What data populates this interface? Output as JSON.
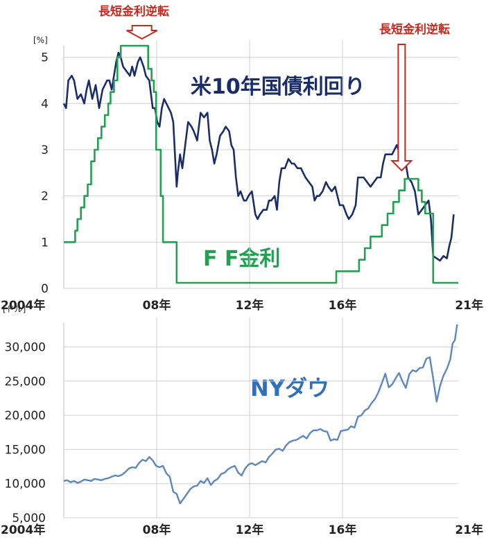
{
  "chart_data": [
    {
      "type": "line",
      "unit_label": "[%]",
      "x_ticks": [
        "2004年",
        "08年",
        "12年",
        "16年",
        "21年"
      ],
      "y_ticks": [
        "0",
        "1",
        "2",
        "3",
        "4",
        "5"
      ],
      "ylim": [
        0,
        5.25
      ],
      "xlim": [
        2004.0,
        2021.3
      ],
      "grid": true,
      "annotations": {
        "left": "長短金利逆転",
        "right": "長短金利逆転",
        "left_x": 2007.0,
        "right_x": 2019.0,
        "colors": {
          "line": "#c8281e",
          "fill": "#ffffff"
        }
      },
      "series": [
        {
          "name": "米10年国債利回り",
          "color": "#1a2d6b",
          "x": [
            2004.0,
            2004.1,
            2004.2,
            2004.35,
            2004.45,
            2004.6,
            2004.75,
            2004.9,
            2005.0,
            2005.1,
            2005.25,
            2005.4,
            2005.55,
            2005.7,
            2005.8,
            2005.9,
            2006.0,
            2006.1,
            2006.2,
            2006.3,
            2006.4,
            2006.5,
            2006.6,
            2006.75,
            2006.9,
            2007.0,
            2007.1,
            2007.25,
            2007.35,
            2007.5,
            2007.6,
            2007.75,
            2007.9,
            2008.0,
            2008.1,
            2008.2,
            2008.3,
            2008.4,
            2008.5,
            2008.6,
            2008.7,
            2008.8,
            2008.95,
            2009.0,
            2009.1,
            2009.2,
            2009.35,
            2009.45,
            2009.6,
            2009.7,
            2009.85,
            2010.0,
            2010.15,
            2010.3,
            2010.4,
            2010.5,
            2010.6,
            2010.7,
            2010.85,
            2011.0,
            2011.1,
            2011.25,
            2011.35,
            2011.45,
            2011.55,
            2011.65,
            2011.75,
            2011.9,
            2012.0,
            2012.1,
            2012.25,
            2012.4,
            2012.5,
            2012.6,
            2012.75,
            2012.9,
            2013.0,
            2013.1,
            2013.25,
            2013.35,
            2013.45,
            2013.55,
            2013.7,
            2013.85,
            2014.0,
            2014.1,
            2014.25,
            2014.4,
            2014.5,
            2014.6,
            2014.75,
            2014.9,
            2015.0,
            2015.1,
            2015.2,
            2015.35,
            2015.5,
            2015.6,
            2015.75,
            2015.9,
            2016.0,
            2016.1,
            2016.25,
            2016.4,
            2016.5,
            2016.65,
            2016.8,
            2016.9,
            2017.0,
            2017.15,
            2017.3,
            2017.45,
            2017.6,
            2017.75,
            2017.9,
            2018.0,
            2018.1,
            2018.25,
            2018.4,
            2018.5,
            2018.6,
            2018.75,
            2018.9,
            2019.0,
            2019.1,
            2019.25,
            2019.4,
            2019.55,
            2019.7,
            2019.85,
            2020.0,
            2020.1,
            2020.2,
            2020.35,
            2020.5,
            2020.65,
            2020.8,
            2020.9,
            2021.0,
            2021.1
          ],
          "y": [
            4.0,
            3.9,
            4.5,
            4.6,
            4.5,
            4.1,
            4.2,
            4.0,
            4.3,
            4.5,
            4.1,
            4.4,
            3.9,
            4.3,
            4.4,
            4.5,
            4.5,
            4.3,
            4.6,
            4.9,
            5.1,
            5.0,
            4.8,
            4.7,
            4.6,
            4.8,
            4.6,
            4.9,
            5.0,
            4.8,
            4.6,
            4.5,
            3.9,
            3.9,
            3.6,
            3.5,
            3.9,
            4.1,
            4.0,
            3.9,
            3.8,
            3.6,
            2.2,
            2.5,
            2.9,
            2.6,
            3.2,
            3.6,
            3.5,
            3.4,
            3.2,
            3.8,
            3.7,
            3.8,
            3.2,
            3.0,
            2.7,
            2.9,
            3.3,
            3.4,
            3.5,
            3.4,
            3.1,
            3.0,
            2.4,
            2.0,
            2.1,
            1.9,
            1.9,
            2.0,
            2.1,
            1.6,
            1.5,
            1.6,
            1.7,
            1.7,
            1.9,
            1.9,
            2.0,
            1.7,
            2.3,
            2.6,
            2.6,
            2.8,
            2.7,
            2.7,
            2.6,
            2.6,
            2.5,
            2.4,
            2.3,
            2.2,
            1.9,
            2.0,
            2.0,
            2.1,
            2.3,
            2.2,
            2.1,
            2.2,
            2.0,
            1.8,
            1.8,
            1.6,
            1.5,
            1.6,
            1.8,
            2.4,
            2.4,
            2.4,
            2.3,
            2.2,
            2.3,
            2.4,
            2.4,
            2.7,
            2.9,
            2.9,
            2.9,
            3.0,
            3.1,
            2.9,
            2.6,
            2.7,
            2.4,
            2.3,
            2.1,
            1.6,
            1.7,
            1.8,
            1.9,
            1.5,
            0.7,
            0.65,
            0.6,
            0.7,
            0.65,
            0.9,
            1.1,
            1.6
          ],
          "label_color": "#1a2d6b"
        },
        {
          "name": "F F金利",
          "color": "#22a051",
          "x": [
            2004.0,
            2004.5,
            2004.5,
            2004.6,
            2004.6,
            2004.75,
            2004.75,
            2004.9,
            2004.9,
            2005.05,
            2005.05,
            2005.2,
            2005.2,
            2005.35,
            2005.35,
            2005.5,
            2005.5,
            2005.65,
            2005.65,
            2005.8,
            2005.8,
            2005.95,
            2005.95,
            2006.05,
            2006.05,
            2006.2,
            2006.2,
            2006.35,
            2006.35,
            2006.5,
            2006.5,
            2007.7,
            2007.7,
            2007.85,
            2007.85,
            2007.95,
            2007.95,
            2008.05,
            2008.05,
            2008.25,
            2008.25,
            2008.35,
            2008.35,
            2008.95,
            2008.95,
            2015.95,
            2015.95,
            2016.95,
            2016.95,
            2017.2,
            2017.2,
            2017.45,
            2017.45,
            2017.95,
            2017.95,
            2018.2,
            2018.2,
            2018.45,
            2018.45,
            2018.7,
            2018.7,
            2018.95,
            2018.95,
            2019.55,
            2019.55,
            2019.7,
            2019.7,
            2019.85,
            2019.85,
            2020.2,
            2020.2,
            2021.3
          ],
          "y": [
            1.0,
            1.0,
            1.25,
            1.25,
            1.5,
            1.5,
            1.75,
            1.75,
            2.0,
            2.0,
            2.25,
            2.25,
            2.75,
            2.75,
            3.0,
            3.0,
            3.25,
            3.25,
            3.5,
            3.5,
            3.75,
            3.75,
            4.0,
            4.0,
            4.25,
            4.25,
            4.5,
            4.5,
            5.0,
            5.0,
            5.25,
            5.25,
            4.75,
            4.75,
            4.5,
            4.5,
            4.25,
            4.25,
            3.0,
            3.0,
            2.0,
            2.0,
            1.0,
            1.0,
            0.12,
            0.12,
            0.37,
            0.37,
            0.62,
            0.62,
            0.87,
            0.87,
            1.12,
            1.12,
            1.37,
            1.37,
            1.62,
            1.62,
            1.87,
            1.87,
            2.12,
            2.12,
            2.37,
            2.37,
            2.12,
            2.12,
            1.87,
            1.87,
            1.62,
            1.62,
            0.12,
            0.12
          ],
          "label_color": "#22a051"
        }
      ]
    },
    {
      "type": "line",
      "unit_label": "[ドル]",
      "x_ticks": [
        "2004年",
        "08年",
        "12年",
        "16年",
        "21年"
      ],
      "y_ticks": [
        "5,000",
        "10,000",
        "15,000",
        "20,000",
        "25,000",
        "30,000"
      ],
      "ylim": [
        5000,
        33500
      ],
      "xlim": [
        2004.0,
        2021.3
      ],
      "grid": true,
      "series": [
        {
          "name": "NYダウ",
          "color": "#5b87c0",
          "label_color": "#2f6fbb",
          "x": [
            2004.0,
            2004.15,
            2004.3,
            2004.45,
            2004.6,
            2004.75,
            2004.9,
            2005.05,
            2005.2,
            2005.35,
            2005.5,
            2005.65,
            2005.8,
            2005.95,
            2006.1,
            2006.25,
            2006.4,
            2006.55,
            2006.7,
            2006.85,
            2007.0,
            2007.15,
            2007.3,
            2007.45,
            2007.6,
            2007.75,
            2007.9,
            2008.05,
            2008.2,
            2008.35,
            2008.5,
            2008.65,
            2008.8,
            2008.95,
            2009.1,
            2009.25,
            2009.4,
            2009.55,
            2009.7,
            2009.85,
            2010.0,
            2010.15,
            2010.3,
            2010.45,
            2010.6,
            2010.75,
            2010.9,
            2011.05,
            2011.2,
            2011.35,
            2011.5,
            2011.65,
            2011.8,
            2011.95,
            2012.1,
            2012.25,
            2012.4,
            2012.55,
            2012.7,
            2012.85,
            2013.0,
            2013.15,
            2013.3,
            2013.45,
            2013.6,
            2013.75,
            2013.9,
            2014.05,
            2014.2,
            2014.35,
            2014.5,
            2014.65,
            2014.8,
            2014.95,
            2015.1,
            2015.25,
            2015.4,
            2015.55,
            2015.7,
            2015.85,
            2016.0,
            2016.15,
            2016.3,
            2016.45,
            2016.6,
            2016.75,
            2016.9,
            2017.05,
            2017.2,
            2017.35,
            2017.5,
            2017.65,
            2017.8,
            2017.95,
            2018.1,
            2018.25,
            2018.4,
            2018.55,
            2018.7,
            2018.85,
            2019.0,
            2019.15,
            2019.3,
            2019.45,
            2019.6,
            2019.75,
            2019.9,
            2020.05,
            2020.2,
            2020.35,
            2020.5,
            2020.65,
            2020.8,
            2020.95,
            2021.05,
            2021.15,
            2021.25
          ],
          "y": [
            10400,
            10500,
            10200,
            10400,
            10100,
            10300,
            10600,
            10500,
            10400,
            10700,
            10600,
            10500,
            10700,
            10800,
            11000,
            11200,
            11100,
            11300,
            11700,
            12200,
            12400,
            12300,
            13000,
            13500,
            13300,
            13900,
            13400,
            12600,
            12400,
            12600,
            11500,
            11000,
            8800,
            8500,
            7100,
            7800,
            8500,
            9200,
            9600,
            9700,
            10400,
            10100,
            10800,
            9800,
            10400,
            10700,
            11400,
            11600,
            12100,
            12400,
            12600,
            11600,
            11200,
            12200,
            12800,
            13000,
            12700,
            13000,
            13300,
            13100,
            13900,
            14400,
            15000,
            15100,
            14800,
            15600,
            16100,
            16300,
            16400,
            16700,
            17000,
            16600,
            17400,
            17800,
            17800,
            18000,
            17700,
            17600,
            16300,
            16500,
            16400,
            17700,
            17800,
            17900,
            18400,
            18200,
            19800,
            20000,
            20700,
            21000,
            21800,
            22400,
            23400,
            24700,
            26100,
            24100,
            24500,
            25400,
            26200,
            25000,
            24000,
            26000,
            26600,
            26400,
            26900,
            27000,
            28300,
            28500,
            25400,
            22000,
            24300,
            25800,
            26800,
            28200,
            30500,
            31000,
            33300
          ]
        }
      ]
    }
  ]
}
